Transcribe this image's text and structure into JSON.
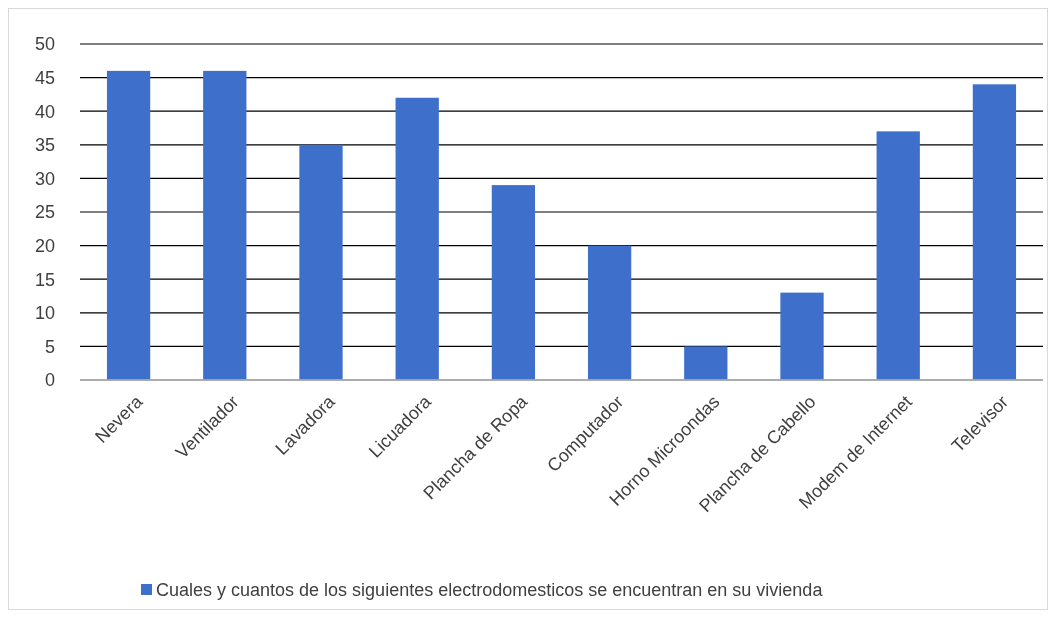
{
  "chart_data": {
    "type": "bar",
    "categories": [
      "Nevera",
      "Ventilador",
      "Lavadora",
      "Licuadora",
      "Plancha de Ropa",
      "Computador",
      "Horno Microondas",
      "Plancha de Cabello",
      "Modem de Internet",
      "Televisor"
    ],
    "series": [
      {
        "name": "Cuales y cuantos de los siguientes electrodomesticos se encuentran en su vivienda",
        "color": "#3d6fcb",
        "values": [
          46,
          46,
          35,
          42,
          29,
          20,
          5,
          13,
          37,
          44
        ]
      }
    ],
    "ylim": [
      0,
      50
    ],
    "yticks": [
      0,
      5,
      10,
      15,
      20,
      25,
      30,
      35,
      40,
      45,
      50
    ],
    "grid": "y",
    "legend": "bottom"
  }
}
